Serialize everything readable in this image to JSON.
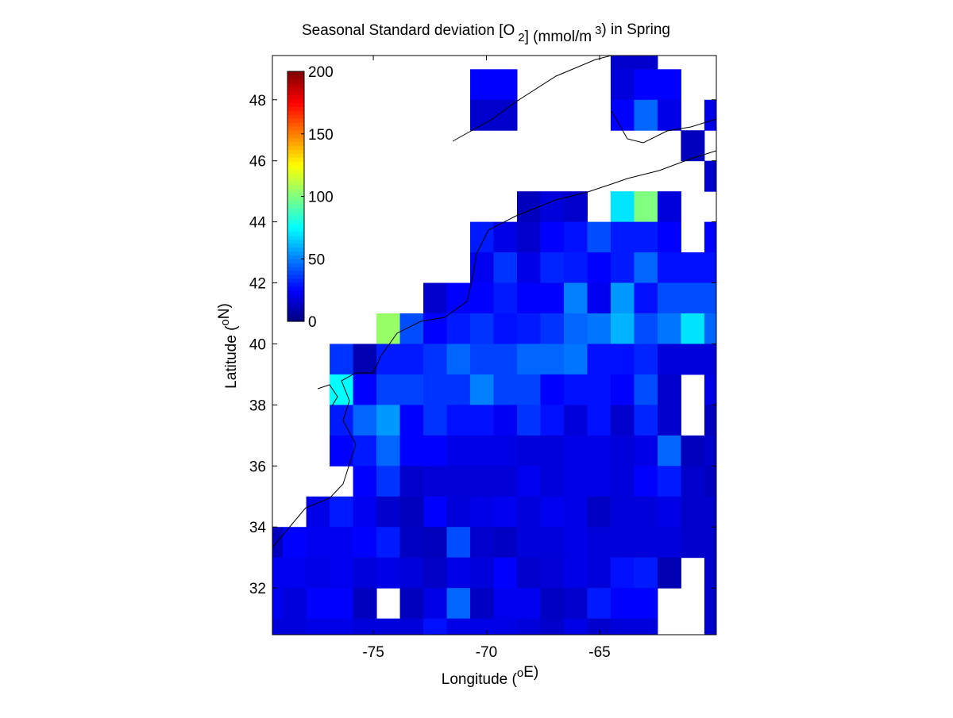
{
  "chart_data": {
    "type": "heatmap",
    "title": [
      "Seasonal Standard deviation [O",
      "2",
      "] (mmol/m",
      "3",
      ") in  Spring"
    ],
    "x_label": [
      "Longitude (",
      "o",
      "E)"
    ],
    "y_label": [
      "Latitude (",
      "o",
      "N)"
    ],
    "colormap": "jet",
    "xlim": [
      -79.46,
      -59.84
    ],
    "ylim": [
      30.47,
      49.45
    ],
    "xticks": [
      -75,
      -70,
      -65
    ],
    "yticks": [
      32,
      34,
      36,
      38,
      40,
      42,
      44,
      46,
      48
    ],
    "clim": [
      0,
      200
    ],
    "cticks": [
      0,
      50,
      100,
      150,
      200
    ],
    "x": [
      -79.52,
      -78.48,
      -77.45,
      -76.41,
      -75.38,
      -74.34,
      -73.31,
      -72.27,
      -71.24,
      -70.2,
      -69.17,
      -68.13,
      -67.1,
      -66.06,
      -65.03,
      -63.99,
      -62.96,
      -61.92,
      -60.89,
      -59.85
    ],
    "y": [
      49.5,
      48.5,
      47.5,
      46.5,
      45.5,
      44.5,
      43.5,
      42.5,
      41.5,
      40.5,
      39.5,
      38.5,
      37.5,
      36.5,
      35.5,
      34.5,
      33.5,
      32.5,
      31.5,
      30.5
    ],
    "z": [
      [
        null,
        null,
        null,
        null,
        null,
        null,
        null,
        null,
        null,
        null,
        null,
        null,
        null,
        null,
        null,
        15,
        15,
        null,
        null,
        null
      ],
      [
        null,
        null,
        null,
        null,
        null,
        null,
        null,
        null,
        null,
        25,
        25,
        null,
        null,
        null,
        null,
        18,
        25,
        25,
        null,
        null
      ],
      [
        null,
        null,
        null,
        null,
        null,
        null,
        null,
        null,
        null,
        15,
        15,
        null,
        null,
        null,
        null,
        25,
        45,
        20,
        null,
        20
      ],
      [
        null,
        null,
        null,
        null,
        null,
        null,
        null,
        null,
        null,
        null,
        null,
        null,
        null,
        null,
        null,
        null,
        null,
        null,
        12,
        null
      ],
      [
        null,
        null,
        null,
        null,
        null,
        null,
        null,
        null,
        null,
        null,
        null,
        null,
        null,
        null,
        null,
        null,
        null,
        null,
        null,
        15
      ],
      [
        null,
        null,
        null,
        null,
        null,
        null,
        null,
        null,
        null,
        null,
        null,
        12,
        18,
        15,
        null,
        70,
        100,
        18,
        null,
        null
      ],
      [
        null,
        null,
        null,
        null,
        null,
        null,
        null,
        null,
        null,
        30,
        20,
        15,
        25,
        28,
        40,
        30,
        30,
        25,
        null,
        25
      ],
      [
        null,
        null,
        null,
        null,
        null,
        null,
        null,
        null,
        null,
        22,
        35,
        20,
        32,
        30,
        25,
        30,
        45,
        28,
        28,
        28
      ],
      [
        null,
        null,
        null,
        null,
        null,
        null,
        null,
        15,
        25,
        25,
        30,
        25,
        25,
        50,
        22,
        55,
        28,
        40,
        40,
        40
      ],
      [
        null,
        null,
        null,
        null,
        null,
        105,
        40,
        25,
        30,
        35,
        28,
        30,
        35,
        45,
        48,
        60,
        40,
        48,
        70,
        45
      ],
      [
        null,
        null,
        null,
        35,
        10,
        30,
        30,
        35,
        45,
        38,
        38,
        45,
        45,
        48,
        28,
        28,
        32,
        18,
        18,
        18
      ],
      [
        null,
        null,
        null,
        75,
        25,
        38,
        38,
        35,
        35,
        50,
        38,
        38,
        25,
        28,
        28,
        25,
        40,
        15,
        null,
        20
      ],
      [
        null,
        null,
        null,
        30,
        45,
        55,
        25,
        35,
        28,
        28,
        23,
        35,
        28,
        18,
        28,
        15,
        32,
        15,
        null,
        12
      ],
      [
        null,
        null,
        null,
        25,
        30,
        45,
        25,
        25,
        20,
        20,
        20,
        18,
        18,
        20,
        20,
        18,
        20,
        45,
        12,
        15
      ],
      [
        null,
        null,
        null,
        null,
        25,
        35,
        15,
        17,
        17,
        17,
        17,
        22,
        18,
        20,
        20,
        18,
        25,
        30,
        15,
        12
      ],
      [
        null,
        null,
        20,
        30,
        22,
        15,
        12,
        25,
        18,
        20,
        22,
        18,
        22,
        20,
        13,
        18,
        18,
        20,
        15,
        15
      ],
      [
        12,
        25,
        22,
        22,
        25,
        30,
        13,
        12,
        40,
        15,
        13,
        18,
        18,
        20,
        18,
        18,
        18,
        18,
        15,
        15
      ],
      [
        22,
        22,
        20,
        22,
        18,
        20,
        18,
        14,
        20,
        18,
        25,
        15,
        17,
        20,
        18,
        28,
        30,
        10,
        null,
        15
      ],
      [
        22,
        18,
        25,
        25,
        12,
        null,
        12,
        20,
        45,
        13,
        22,
        22,
        13,
        15,
        30,
        25,
        25,
        null,
        null,
        15
      ],
      [
        18,
        18,
        20,
        20,
        18,
        18,
        18,
        28,
        20,
        20,
        20,
        18,
        15,
        20,
        15,
        18,
        18,
        null,
        null,
        15
      ]
    ]
  }
}
